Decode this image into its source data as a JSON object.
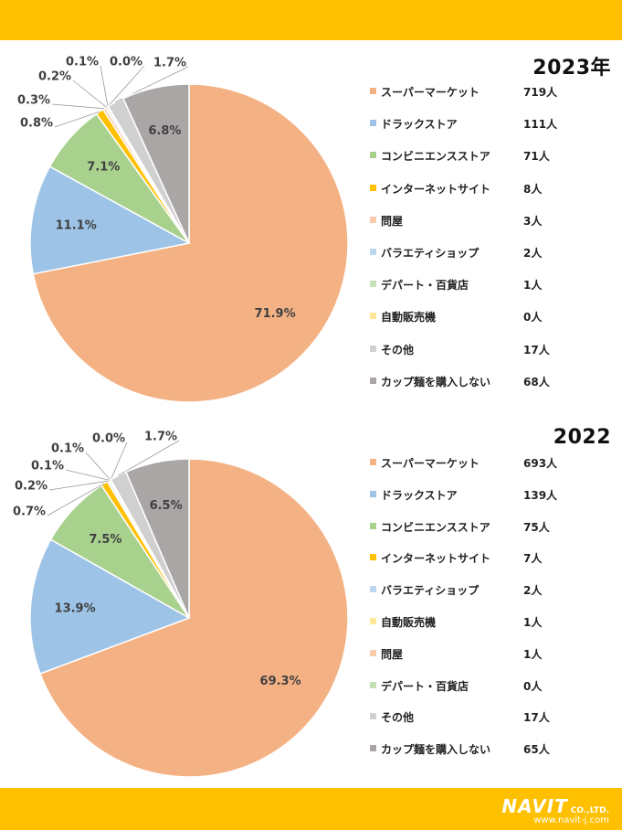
{
  "colors": {
    "band": "#ffc000"
  },
  "footer": {
    "brand": "NAVIT",
    "company": "CO.,LTD.",
    "url": "www.navit-j.com"
  },
  "chart_data": [
    {
      "type": "pie",
      "title": "2023年",
      "slices": [
        {
          "label": "スーパーマーケット",
          "count": "719人",
          "value": 719,
          "pct": "71.9%",
          "color": "#f4b183"
        },
        {
          "label": "ドラックストア",
          "count": "111人",
          "value": 111,
          "pct": "11.1%",
          "color": "#9dc3e6"
        },
        {
          "label": "コンビニエンスストア",
          "count": "71人",
          "value": 71,
          "pct": "7.1%",
          "color": "#a9d18e"
        },
        {
          "label": "インターネットサイト",
          "count": "8人",
          "value": 8,
          "pct": "0.8%",
          "color": "#ffc000"
        },
        {
          "label": "問屋",
          "count": "3人",
          "value": 3,
          "pct": "0.3%",
          "color": "#f8cbad"
        },
        {
          "label": "バラエティショップ",
          "count": "2人",
          "value": 2,
          "pct": "0.2%",
          "color": "#bdd7ee"
        },
        {
          "label": "デパート・百貨店",
          "count": "1人",
          "value": 1,
          "pct": "0.1%",
          "color": "#c5e0b4"
        },
        {
          "label": "自動販売機",
          "count": "0人",
          "value": 0,
          "pct": "0.0%",
          "color": "#ffe699"
        },
        {
          "label": "その他",
          "count": "17人",
          "value": 17,
          "pct": "1.7%",
          "color": "#d0d0d0"
        },
        {
          "label": "カップ麺を購入しない",
          "count": "68人",
          "value": 68,
          "pct": "6.8%",
          "color": "#aba6a6"
        }
      ]
    },
    {
      "type": "pie",
      "title": "2022",
      "slices": [
        {
          "label": "スーパーマーケット",
          "count": "693人",
          "value": 693,
          "pct": "69.3%",
          "color": "#f4b183"
        },
        {
          "label": "ドラックストア",
          "count": "139人",
          "value": 139,
          "pct": "13.9%",
          "color": "#9dc3e6"
        },
        {
          "label": "コンビニエンスストア",
          "count": "75人",
          "value": 75,
          "pct": "7.5%",
          "color": "#a9d18e"
        },
        {
          "label": "インターネットサイト",
          "count": "7人",
          "value": 7,
          "pct": "0.7%",
          "color": "#ffc000"
        },
        {
          "label": "バラエティショップ",
          "count": "2人",
          "value": 2,
          "pct": "0.2%",
          "color": "#bdd7ee"
        },
        {
          "label": "自動販売機",
          "count": "1人",
          "value": 1,
          "pct": "0.1%",
          "color": "#ffe699"
        },
        {
          "label": "問屋",
          "count": "1人",
          "value": 1,
          "pct": "0.1%",
          "color": "#f8cbad"
        },
        {
          "label": "デパート・百貨店",
          "count": "0人",
          "value": 0,
          "pct": "0.0%",
          "color": "#c5e0b4"
        },
        {
          "label": "その他",
          "count": "17人",
          "value": 17,
          "pct": "1.7%",
          "color": "#d0d0d0"
        },
        {
          "label": "カップ麺を購入しない",
          "count": "65人",
          "value": 65,
          "pct": "6.5%",
          "color": "#aba6a6"
        }
      ]
    }
  ]
}
